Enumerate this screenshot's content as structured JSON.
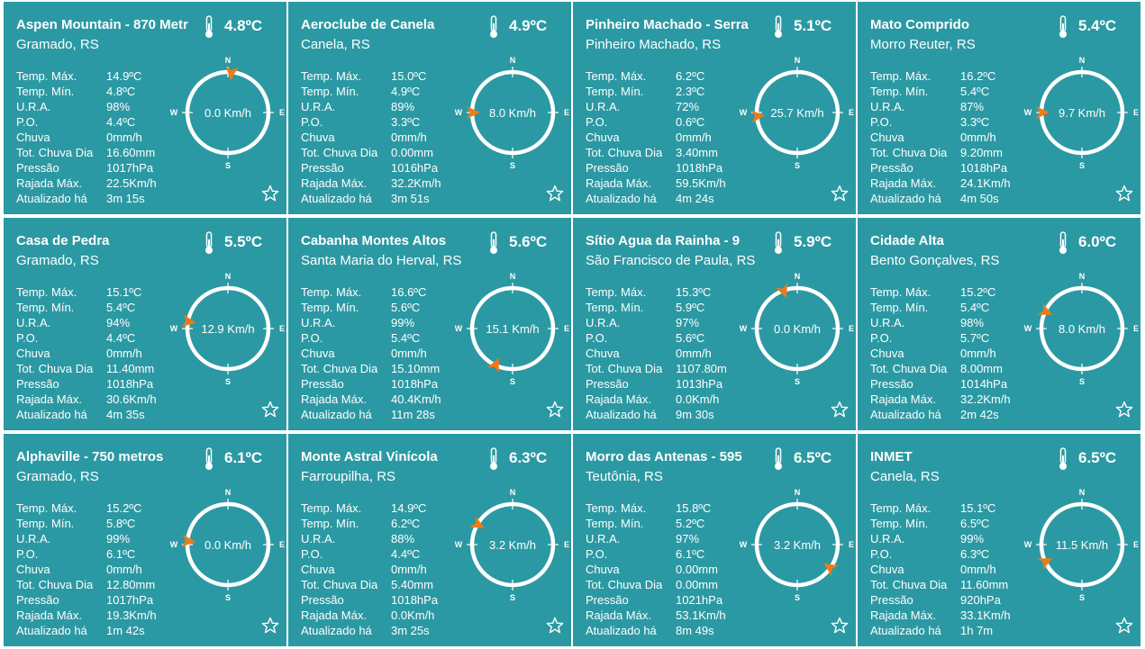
{
  "labels": {
    "max": "Temp. Máx.",
    "min": "Temp. Mín.",
    "ura": "U.R.A.",
    "po": "P.O.",
    "chuva": "Chuva",
    "tot": "Tot. Chuva Dia",
    "pressao": "Pressão",
    "rajada": "Rajada Máx.",
    "atualizado": "Atualizado há",
    "north": "N",
    "south": "S",
    "east": "E",
    "west": "W"
  },
  "colors": {
    "card_bg": "#2b99a3",
    "arrow": "#f07a16",
    "text": "#ffffff"
  },
  "stations": [
    {
      "title": "Aspen Mountain - 870 Metr",
      "city": "Gramado, RS",
      "temp": "4.8ºC",
      "max": "14.9ºC",
      "min": "4.8ºC",
      "ura": "98%",
      "po": "4.4ºC",
      "chuva": "0mm/h",
      "tot": "16.60mm",
      "pressao": "1017hPa",
      "rajada": "22.5Km/h",
      "atualizado": "3m 15s",
      "wind": "0.0 Km/h",
      "wind_dir_deg": 5
    },
    {
      "title": "Aeroclube de Canela",
      "city": "Canela, RS",
      "temp": "4.9ºC",
      "max": "15.0ºC",
      "min": "4.9ºC",
      "ura": "89%",
      "po": "3.3ºC",
      "chuva": "0mm/h",
      "tot": "0.00mm",
      "pressao": "1016hPa",
      "rajada": "32.2Km/h",
      "atualizado": "3m 51s",
      "wind": "8.0 Km/h",
      "wind_dir_deg": 270
    },
    {
      "title": "Pinheiro Machado - Serra",
      "city": "Pinheiro Machado, RS",
      "temp": "5.1ºC",
      "max": "6.2ºC",
      "min": "2.3ºC",
      "ura": "72%",
      "po": "0.6ºC",
      "chuva": "0mm/h",
      "tot": "3.40mm",
      "pressao": "1018hPa",
      "rajada": "59.5Km/h",
      "atualizado": "4m 24s",
      "wind": "25.7 Km/h",
      "wind_dir_deg": 265
    },
    {
      "title": "Mato Comprido",
      "city": "Morro Reuter, RS",
      "temp": "5.4ºC",
      "max": "16.2ºC",
      "min": "5.4ºC",
      "ura": "87%",
      "po": "3.3ºC",
      "chuva": "0mm/h",
      "tot": "9.20mm",
      "pressao": "1018hPa",
      "rajada": "24.1Km/h",
      "atualizado": "4m 50s",
      "wind": "9.7 Km/h",
      "wind_dir_deg": 270
    },
    {
      "title": "Casa de Pedra",
      "city": "Gramado, RS",
      "temp": "5.5ºC",
      "max": "15.1ºC",
      "min": "5.4ºC",
      "ura": "94%",
      "po": "4.4ºC",
      "chuva": "0mm/h",
      "tot": "11.40mm",
      "pressao": "1018hPa",
      "rajada": "30.6Km/h",
      "atualizado": "4m 35s",
      "wind": "12.9 Km/h",
      "wind_dir_deg": 280
    },
    {
      "title": "Cabanha Montes Altos",
      "city": "Santa Maria do Herval, RS",
      "temp": "5.6ºC",
      "max": "16.6ºC",
      "min": "5.6ºC",
      "ura": "99%",
      "po": "5.4ºC",
      "chuva": "0mm/h",
      "tot": "15.10mm",
      "pressao": "1018hPa",
      "rajada": "40.4Km/h",
      "atualizado": "11m 28s",
      "wind": "15.1 Km/h",
      "wind_dir_deg": 205
    },
    {
      "title": "Sítio Agua da Rainha - 9",
      "city": "São Francisco de Paula, RS",
      "temp": "5.9ºC",
      "max": "15.3ºC",
      "min": "5.9ºC",
      "ura": "97%",
      "po": "5.6ºC",
      "chuva": "0mm/h",
      "tot": "1107.80m",
      "pressao": "1013hPa",
      "rajada": "0.0Km/h",
      "atualizado": "9m 30s",
      "wind": "0.0 Km/h",
      "wind_dir_deg": 340
    },
    {
      "title": "Cidade Alta",
      "city": "Bento Gonçalves, RS",
      "temp": "6.0ºC",
      "max": "15.2ºC",
      "min": "5.4ºC",
      "ura": "98%",
      "po": "5.7ºC",
      "chuva": "0mm/h",
      "tot": "8.00mm",
      "pressao": "1014hPa",
      "rajada": "32.2Km/h",
      "atualizado": "2m 42s",
      "wind": "8.0 Km/h",
      "wind_dir_deg": 295
    },
    {
      "title": "Alphaville - 750 metros",
      "city": "Gramado, RS",
      "temp": "6.1ºC",
      "max": "15.2ºC",
      "min": "5.8ºC",
      "ura": "99%",
      "po": "6.1ºC",
      "chuva": "0mm/h",
      "tot": "12.80mm",
      "pressao": "1017hPa",
      "rajada": "19.3Km/h",
      "atualizado": "1m 42s",
      "wind": "0.0 Km/h",
      "wind_dir_deg": 275
    },
    {
      "title": "Monte Astral Vinícola",
      "city": "Farroupilha, RS",
      "temp": "6.3ºC",
      "max": "14.9ºC",
      "min": "6.2ºC",
      "ura": "88%",
      "po": "4.4ºC",
      "chuva": "0mm/h",
      "tot": "5.40mm",
      "pressao": "1018hPa",
      "rajada": "0.0Km/h",
      "atualizado": "3m 25s",
      "wind": "3.2 Km/h",
      "wind_dir_deg": 300
    },
    {
      "title": "Morro das Antenas - 595",
      "city": "Teutônia, RS",
      "temp": "6.5ºC",
      "max": "15.8ºC",
      "min": "5.2ºC",
      "ura": "97%",
      "po": "6.1ºC",
      "chuva": "0.00mm",
      "tot": "0.00mm",
      "pressao": "1021hPa",
      "rajada": "53.1Km/h",
      "atualizado": "8m 49s",
      "wind": "3.2 Km/h",
      "wind_dir_deg": 125
    },
    {
      "title": "INMET",
      "city": "Canela, RS",
      "temp": "6.5ºC",
      "max": "15.1ºC",
      "min": "6.5ºC",
      "ura": "99%",
      "po": "6.3ºC",
      "chuva": "0mm/h",
      "tot": "11.60mm",
      "pressao": "920hPa",
      "rajada": "33.1Km/h",
      "atualizado": "1h 7m",
      "wind": "11.5 Km/h",
      "wind_dir_deg": 245
    }
  ]
}
